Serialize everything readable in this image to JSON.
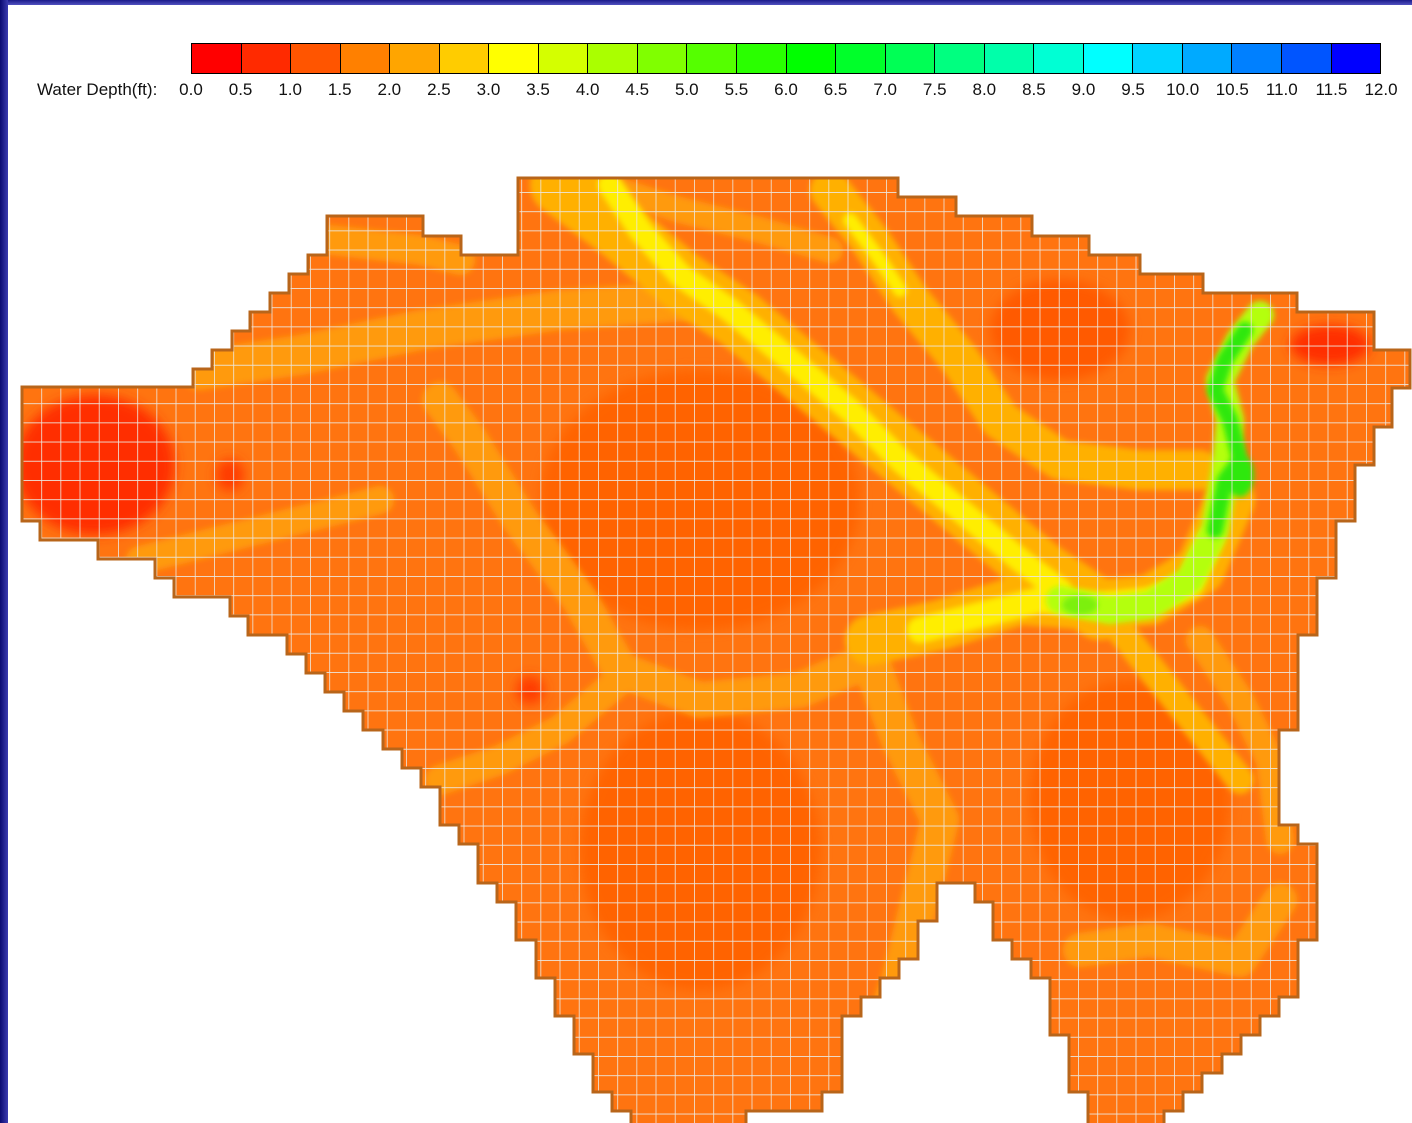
{
  "legend": {
    "title": "Water Depth(ft):",
    "ticks": [
      "0.0",
      "0.5",
      "1.0",
      "1.5",
      "2.0",
      "2.5",
      "3.0",
      "3.5",
      "4.0",
      "4.5",
      "5.0",
      "5.5",
      "6.0",
      "6.5",
      "7.0",
      "7.5",
      "8.0",
      "8.5",
      "9.0",
      "9.5",
      "10.0",
      "10.5",
      "11.0",
      "11.5",
      "12.0"
    ],
    "colors": [
      "#ff0000",
      "#ff2a00",
      "#ff5500",
      "#ff8000",
      "#ffa500",
      "#ffcc00",
      "#ffff00",
      "#d4ff00",
      "#aaff00",
      "#80ff00",
      "#55ff00",
      "#2aff00",
      "#00ff00",
      "#00ff2a",
      "#00ff55",
      "#00ff80",
      "#00ffaa",
      "#00ffd4",
      "#00ffff",
      "#00d4ff",
      "#00aaff",
      "#0080ff",
      "#0055ff",
      "#0000ff"
    ]
  },
  "map": {
    "boundary_color": "#b8651a",
    "grid_color": "#ece8e0",
    "base_color": "#ff7410"
  }
}
